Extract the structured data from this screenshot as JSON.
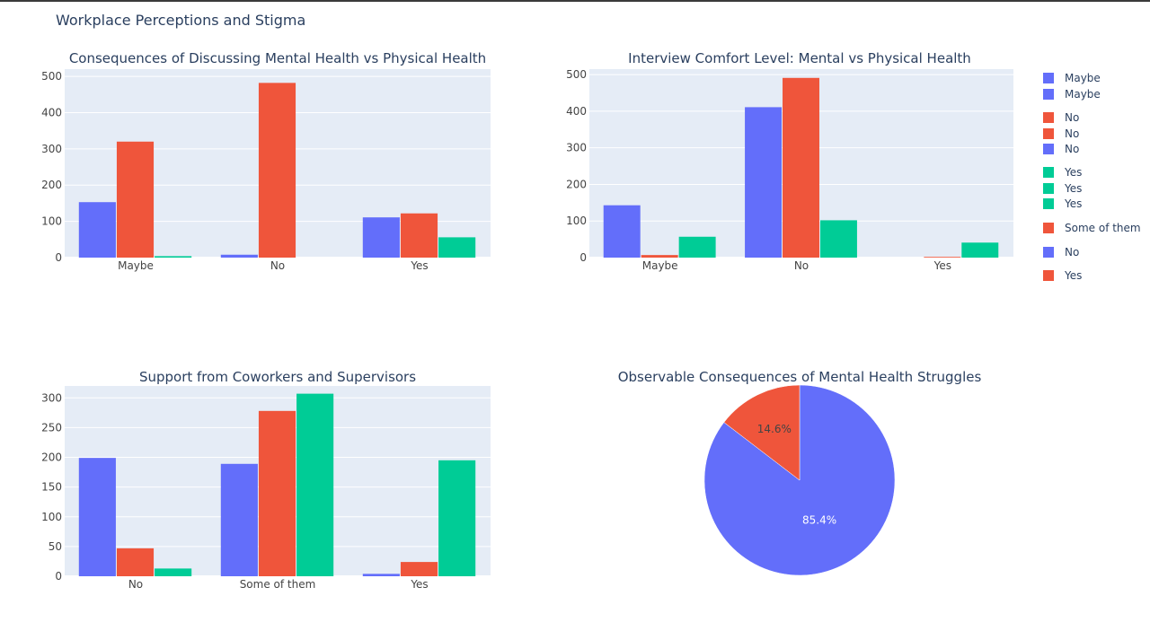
{
  "title": "Workplace Perceptions and Stigma",
  "colors": {
    "blue": "#636efa",
    "red": "#ef553b",
    "green": "#00cc96",
    "plot_bg": "#e5ecf6",
    "grid": "#ffffff",
    "text": "#2a3f5f",
    "tick_text": "#444444"
  },
  "legend": {
    "items": [
      {
        "label": "Maybe",
        "color": "#636efa"
      },
      {
        "label": "Maybe",
        "color": "#636efa"
      },
      {
        "label": "No",
        "color": "#ef553b"
      },
      {
        "label": "No",
        "color": "#ef553b"
      },
      {
        "label": "No",
        "color": "#636efa"
      },
      {
        "label": "Yes",
        "color": "#00cc96"
      },
      {
        "label": "Yes",
        "color": "#00cc96"
      },
      {
        "label": "Yes",
        "color": "#00cc96"
      },
      {
        "label": "Some of them",
        "color": "#ef553b"
      },
      {
        "label": "No",
        "color": "#636efa"
      },
      {
        "label": "Yes",
        "color": "#ef553b"
      }
    ]
  },
  "chart_data": [
    {
      "type": "bar",
      "title": "Consequences of Discussing Mental Health vs Physical Health",
      "categories": [
        "Maybe",
        "No",
        "Yes"
      ],
      "ylim": [
        0,
        520
      ],
      "yticks": [
        0,
        100,
        200,
        300,
        400,
        500
      ],
      "series": [
        {
          "color": "#636efa",
          "values": [
            153,
            8,
            111
          ]
        },
        {
          "color": "#ef553b",
          "values": [
            320,
            482,
            122
          ]
        },
        {
          "color": "#00cc96",
          "values": [
            4,
            0,
            56
          ]
        }
      ]
    },
    {
      "type": "bar",
      "title": "Interview Comfort Level: Mental vs Physical Health",
      "categories": [
        "Maybe",
        "No",
        "Yes"
      ],
      "ylim": [
        0,
        515
      ],
      "yticks": [
        0,
        100,
        200,
        300,
        400,
        500
      ],
      "series": [
        {
          "color": "#636efa",
          "values": [
            143,
            411,
            0
          ]
        },
        {
          "color": "#ef553b",
          "values": [
            7,
            491,
            2
          ]
        },
        {
          "color": "#00cc96",
          "values": [
            57,
            102,
            41
          ]
        }
      ]
    },
    {
      "type": "bar",
      "title": "Support from Coworkers and Supervisors",
      "categories": [
        "No",
        "Some of them",
        "Yes"
      ],
      "ylim": [
        0,
        320
      ],
      "yticks": [
        0,
        50,
        100,
        150,
        200,
        250,
        300
      ],
      "series": [
        {
          "color": "#636efa",
          "values": [
            199,
            189,
            4
          ]
        },
        {
          "color": "#ef553b",
          "values": [
            47,
            278,
            24
          ]
        },
        {
          "color": "#00cc96",
          "values": [
            13,
            307,
            195
          ]
        }
      ]
    },
    {
      "type": "pie",
      "title": "Observable Consequences of Mental Health Struggles",
      "slices": [
        {
          "label": "No",
          "value": 85.4,
          "text": "85.4%",
          "color": "#636efa"
        },
        {
          "label": "Yes",
          "value": 14.6,
          "text": "14.6%",
          "color": "#ef553b"
        }
      ]
    }
  ]
}
